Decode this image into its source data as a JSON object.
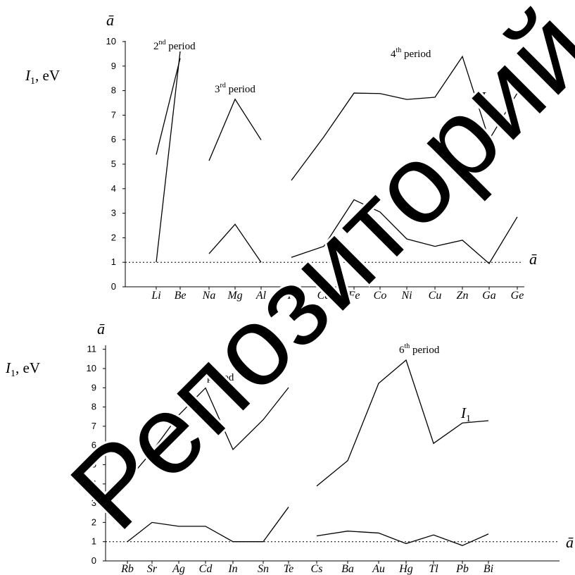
{
  "chart_data": [
    {
      "type": "line",
      "ylabel": "I₁, eV",
      "ylim": [
        0,
        10
      ],
      "yticks": [
        "0",
        "1",
        "2",
        "3",
        "4",
        "5",
        "6",
        "7",
        "8",
        "9",
        "10"
      ],
      "y_axis_symbol": "ā",
      "reference_label": "ā",
      "reference_value": 1,
      "categories": [
        "Li",
        "Be",
        "Na",
        "Mg",
        "Al",
        "K",
        "Ca",
        "Fe",
        "Co",
        "Ni",
        "Cu",
        "Zn",
        "Ga",
        "Ge"
      ],
      "annotations": [
        {
          "base": "2",
          "sup": "nd",
          "text": " period"
        },
        {
          "base": "3",
          "sup": "rd",
          "text": " period"
        },
        {
          "base": "4",
          "sup": "th",
          "text": " period"
        },
        {
          "base": "I",
          "sub": "1",
          "text": ""
        }
      ],
      "series": [
        {
          "segments": [
            {
              "start": 0,
              "values": [
                5.39,
                9.32
              ]
            },
            {
              "start": 2,
              "values": [
                5.14,
                7.65,
                5.99
              ]
            },
            {
              "start": 5,
              "values": [
                4.34,
                6.11,
                7.9,
                7.88,
                7.64,
                7.73,
                9.39,
                6.0,
                7.9
              ]
            }
          ]
        },
        {
          "segments": [
            {
              "start": 0,
              "values": [
                1.0,
                9.6
              ]
            },
            {
              "start": 2,
              "values": [
                1.35,
                2.55,
                1.0
              ]
            },
            {
              "start": 5,
              "values": [
                1.2,
                1.65,
                3.55,
                3.05,
                1.95,
                1.65,
                1.9,
                0.95,
                2.85
              ]
            }
          ]
        }
      ]
    },
    {
      "type": "line",
      "ylabel": "I₁, eV",
      "ylim": [
        0,
        11
      ],
      "yticks": [
        "0",
        "1",
        "2",
        "3",
        "4",
        "5",
        "6",
        "7",
        "8",
        "9",
        "10",
        "11"
      ],
      "y_axis_symbol": "ā",
      "reference_label": "ā",
      "reference_value": 1,
      "categories": [
        "Rb",
        "Sr",
        "Ag",
        "Cd",
        "In",
        "Sn",
        "Te",
        "Cs",
        "Ba",
        "Au",
        "Hg",
        "Tl",
        "Pb",
        "Bi"
      ],
      "annotations": [
        {
          "base": "5",
          "sup": "th",
          "text": " period"
        },
        {
          "base": "6",
          "sup": "th",
          "text": " period"
        },
        {
          "base": "I",
          "sub": "1",
          "text": ""
        }
      ],
      "series": [
        {
          "segments": [
            {
              "start": 0,
              "values": [
                4.18,
                5.69,
                7.58,
                8.99,
                5.79,
                7.34,
                9.01
              ]
            },
            {
              "start": 7,
              "values": [
                3.89,
                5.21,
                9.23,
                10.44,
                6.11,
                7.17,
                7.29
              ]
            }
          ]
        },
        {
          "segments": [
            {
              "start": 0,
              "values": [
                1.0,
                2.0,
                1.8,
                1.8,
                1.0,
                1.0,
                2.8
              ]
            },
            {
              "start": 7,
              "values": [
                1.3,
                1.55,
                1.45,
                0.9,
                1.35,
                0.8,
                1.4
              ]
            }
          ]
        }
      ]
    }
  ],
  "watermark": {
    "text": "Репозиторий Кан",
    "color": "#000000"
  }
}
